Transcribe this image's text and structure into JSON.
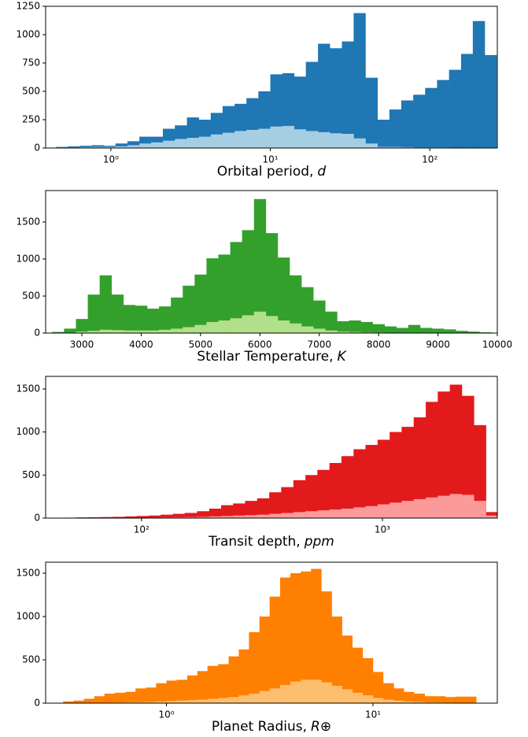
{
  "chart_data": [
    {
      "type": "histogram",
      "xscale": "log",
      "xlim": [
        0.39,
        265
      ],
      "ylim": [
        0,
        1250
      ],
      "xticks": [
        {
          "value": 1,
          "label": "10⁰"
        },
        {
          "value": 10,
          "label": "10¹"
        },
        {
          "value": 100,
          "label": "10²"
        }
      ],
      "yticks": [
        0,
        250,
        500,
        750,
        1000,
        1250
      ],
      "xlabel": "Orbital period,",
      "xlabel_unit": "d",
      "bins": [
        0.452,
        0.537,
        0.637,
        0.757,
        0.899,
        1.07,
        1.27,
        1.51,
        1.79,
        2.12,
        2.52,
        3.0,
        3.56,
        4.23,
        5.02,
        5.97,
        7.08,
        8.41,
        10.0,
        11.9,
        14.1,
        16.7,
        19.9,
        23.6,
        28.1,
        33.3,
        39.5,
        47.0,
        55.8,
        66.2,
        78.7,
        93.5,
        111,
        132,
        157,
        186,
        221,
        262
      ],
      "series": [
        {
          "color": "#1f77b4",
          "values": [
            10,
            15,
            20,
            25,
            20,
            40,
            60,
            100,
            100,
            170,
            200,
            270,
            250,
            310,
            370,
            390,
            440,
            500,
            650,
            660,
            630,
            760,
            920,
            880,
            940,
            1190,
            620,
            250,
            340,
            420,
            470,
            530,
            600,
            690,
            830,
            1120,
            820
          ]
        },
        {
          "color": "#a6cee3",
          "values": [
            5,
            5,
            8,
            10,
            10,
            15,
            25,
            40,
            50,
            65,
            80,
            90,
            100,
            120,
            135,
            150,
            160,
            170,
            190,
            195,
            165,
            150,
            140,
            130,
            125,
            85,
            40,
            10,
            10,
            8,
            5,
            5,
            5,
            3,
            3,
            2,
            2
          ]
        }
      ]
    },
    {
      "type": "histogram",
      "xscale": "linear",
      "xlim": [
        2390,
        10000
      ],
      "ylim": [
        0,
        1925
      ],
      "xticks": [
        3000,
        4000,
        5000,
        6000,
        7000,
        8000,
        9000,
        10000
      ],
      "yticks": [
        0,
        500,
        1000,
        1500
      ],
      "xlabel": "Stellar Temperature,",
      "xlabel_unit": "K",
      "bins": [
        2500,
        2700,
        2900,
        3100,
        3300,
        3500,
        3700,
        3900,
        4100,
        4300,
        4500,
        4700,
        4900,
        5100,
        5300,
        5500,
        5700,
        5900,
        6100,
        6300,
        6500,
        6700,
        6900,
        7100,
        7300,
        7500,
        7700,
        7900,
        8100,
        8300,
        8500,
        8700,
        8900,
        9100,
        9300,
        9500,
        9700,
        9900
      ],
      "series": [
        {
          "color": "#33a02c",
          "values": [
            15,
            60,
            190,
            520,
            780,
            520,
            380,
            370,
            330,
            360,
            480,
            640,
            790,
            1010,
            1060,
            1230,
            1390,
            1810,
            1350,
            1020,
            780,
            620,
            440,
            290,
            160,
            170,
            150,
            120,
            90,
            70,
            110,
            70,
            60,
            50,
            30,
            20,
            10
          ]
        },
        {
          "color": "#b2df8a",
          "values": [
            2,
            5,
            20,
            30,
            45,
            40,
            35,
            35,
            35,
            45,
            60,
            80,
            110,
            150,
            170,
            200,
            240,
            290,
            230,
            170,
            130,
            90,
            60,
            35,
            20,
            15,
            10,
            8,
            5,
            4,
            3,
            2,
            2,
            1,
            1,
            1,
            0
          ]
        }
      ]
    },
    {
      "type": "histogram",
      "xscale": "log",
      "xlim": [
        40,
        3000
      ],
      "ylim": [
        0,
        1646
      ],
      "xticks": [
        {
          "value": 100,
          "label": "10²"
        },
        {
          "value": 1000,
          "label": "10³"
        }
      ],
      "yticks": [
        0,
        500,
        1000,
        1500
      ],
      "xlabel": "Transit depth,",
      "xlabel_unit": "ppm",
      "bins": [
        47.9,
        53.7,
        60.3,
        67.6,
        75.9,
        85.1,
        95.5,
        107,
        120,
        135,
        151,
        170,
        191,
        214,
        240,
        269,
        302,
        339,
        380,
        427,
        479,
        537,
        603,
        676,
        759,
        851,
        955,
        1072,
        1202,
        1349,
        1514,
        1698,
        1905,
        2138,
        2399,
        2692,
        2990
      ],
      "series": [
        {
          "color": "#e31a1c",
          "values": [
            5,
            8,
            10,
            12,
            15,
            20,
            25,
            30,
            40,
            50,
            60,
            80,
            110,
            150,
            170,
            200,
            230,
            300,
            360,
            440,
            500,
            560,
            640,
            720,
            800,
            850,
            910,
            1000,
            1060,
            1170,
            1350,
            1470,
            1550,
            1420,
            1080,
            70
          ]
        },
        {
          "color": "#fb9a99",
          "values": [
            1,
            1,
            2,
            2,
            3,
            4,
            5,
            6,
            8,
            10,
            12,
            15,
            20,
            25,
            30,
            35,
            40,
            50,
            60,
            70,
            80,
            90,
            100,
            110,
            125,
            140,
            160,
            180,
            200,
            220,
            240,
            260,
            280,
            270,
            200,
            30
          ]
        }
      ]
    },
    {
      "type": "histogram",
      "xscale": "log",
      "xlim": [
        0.26,
        40
      ],
      "ylim": [
        0,
        1627
      ],
      "xticks": [
        {
          "value": 1,
          "label": "10⁰"
        },
        {
          "value": 10,
          "label": "10¹"
        }
      ],
      "yticks": [
        0,
        500,
        1000,
        1500
      ],
      "xlabel": "Planet Radius,",
      "xlabel_unit": "R⊕",
      "bins": [
        0.316,
        0.355,
        0.398,
        0.447,
        0.501,
        0.562,
        0.631,
        0.708,
        0.794,
        0.891,
        1,
        1.12,
        1.26,
        1.41,
        1.58,
        1.78,
        2.0,
        2.24,
        2.51,
        2.82,
        3.16,
        3.55,
        3.98,
        4.47,
        5.01,
        5.62,
        6.31,
        7.08,
        7.94,
        8.91,
        10,
        11.2,
        12.6,
        14.1,
        15.8,
        17.8,
        20.0,
        22.4,
        25.1,
        28.2,
        31.6
      ],
      "series": [
        {
          "color": "#ff7f00",
          "values": [
            20,
            30,
            50,
            80,
            110,
            120,
            130,
            170,
            180,
            230,
            260,
            270,
            320,
            370,
            430,
            450,
            540,
            620,
            820,
            1000,
            1230,
            1450,
            1500,
            1520,
            1550,
            1290,
            1000,
            780,
            640,
            520,
            360,
            230,
            170,
            130,
            110,
            80,
            80,
            70,
            75,
            75
          ]
        },
        {
          "color": "#fdbf6f",
          "values": [
            2,
            3,
            4,
            5,
            6,
            8,
            10,
            12,
            15,
            20,
            25,
            30,
            35,
            40,
            50,
            60,
            70,
            90,
            110,
            140,
            170,
            210,
            250,
            270,
            270,
            240,
            200,
            160,
            120,
            90,
            60,
            40,
            30,
            20,
            15,
            10,
            8,
            6,
            5,
            4
          ]
        }
      ]
    }
  ]
}
